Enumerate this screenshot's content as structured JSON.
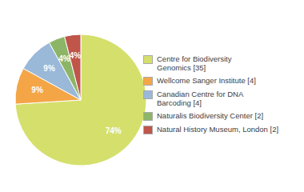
{
  "chart_data": {
    "type": "pie",
    "categories": [
      "Centre for Biodiversity\nGenomics [35]",
      "Wellcome Sanger Institute [4]",
      "Canadian Centre for DNA\nBarcoding [4]",
      "Naturalis Biodiversity Center [2]",
      "Natural History Museum, London [2]"
    ],
    "values": [
      74,
      9,
      9,
      4,
      4
    ],
    "value_labels": [
      "74%",
      "9%",
      "9%",
      "4%",
      "4%"
    ],
    "colors": [
      "#d4e06b",
      "#f4a647",
      "#9ab8d8",
      "#8db567",
      "#c0554a"
    ],
    "data_labels": true,
    "legend": "right"
  }
}
